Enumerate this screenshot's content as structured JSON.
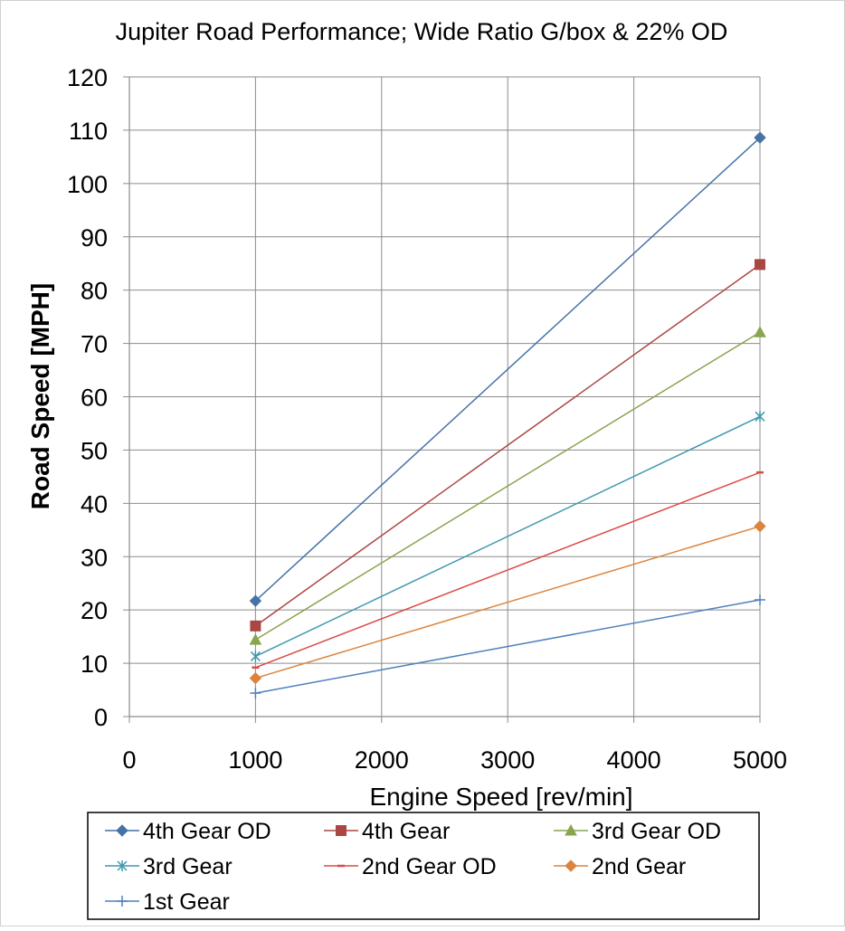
{
  "chart_data": {
    "type": "line",
    "title": "Jupiter Road Performance; Wide Ratio G/box & 22% OD",
    "xlabel": "Engine Speed [rev/min]",
    "ylabel": "Road Speed [MPH]",
    "xlim": [
      0,
      5000
    ],
    "ylim": [
      0,
      120
    ],
    "xticks": [
      0,
      1000,
      2000,
      3000,
      4000,
      5000
    ],
    "yticks": [
      0,
      10,
      20,
      30,
      40,
      50,
      60,
      70,
      80,
      90,
      100,
      110,
      120
    ],
    "grid": true,
    "legend_position": "bottom",
    "series": [
      {
        "name": "4th Gear OD",
        "color": "#4572A7",
        "marker": "diamond",
        "x": [
          1000,
          5000
        ],
        "y": [
          21.7,
          108.6
        ]
      },
      {
        "name": "4th Gear",
        "color": "#AA4643",
        "marker": "square",
        "x": [
          1000,
          5000
        ],
        "y": [
          17.0,
          84.8
        ]
      },
      {
        "name": "3rd Gear OD",
        "color": "#89A54E",
        "marker": "triangle",
        "x": [
          1000,
          5000
        ],
        "y": [
          14.4,
          72.1
        ]
      },
      {
        "name": "3rd Gear",
        "color": "#4198AF",
        "marker": "star",
        "x": [
          1000,
          5000
        ],
        "y": [
          11.3,
          56.3
        ]
      },
      {
        "name": "2nd Gear OD",
        "color": "#DB4B48",
        "marker": "dash",
        "x": [
          1000,
          5000
        ],
        "y": [
          9.2,
          45.8
        ]
      },
      {
        "name": "2nd Gear",
        "color": "#DB843D",
        "marker": "diamond",
        "x": [
          1000,
          5000
        ],
        "y": [
          7.2,
          35.7
        ]
      },
      {
        "name": "1st Gear",
        "color": "#4F81BD",
        "marker": "plus",
        "x": [
          1000,
          5000
        ],
        "y": [
          4.4,
          21.9
        ]
      }
    ]
  }
}
